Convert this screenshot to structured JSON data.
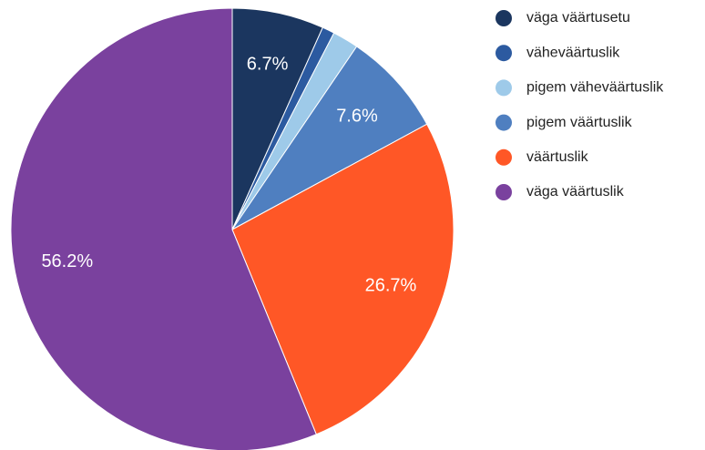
{
  "chart_data": {
    "type": "pie",
    "categories": [
      "väga väärtusetu",
      "väheväärtuslik",
      "pigem väheväärtuslik",
      "pigem väärtuslik",
      "väärtuslik",
      "väga väärtuslik"
    ],
    "values": [
      6.7,
      0.9,
      1.9,
      7.6,
      26.7,
      56.2
    ],
    "value_labels": [
      "6.7%",
      null,
      null,
      "7.6%",
      "26.7%",
      "56.2%"
    ],
    "colors": [
      "#1b365f",
      "#2c5aa0",
      "#9ecae9",
      "#4f7fc0",
      "#ff5726",
      "#7a419e"
    ],
    "legend": "right"
  }
}
